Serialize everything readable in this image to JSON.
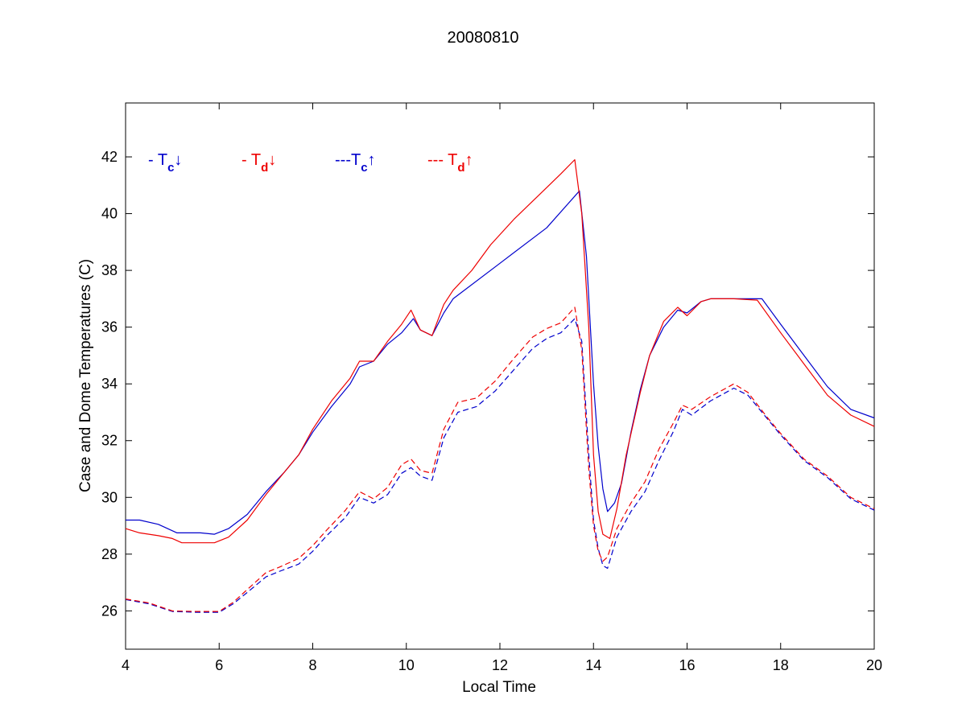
{
  "chart_data": {
    "type": "line",
    "title": "20080810",
    "xlabel": "Local Time",
    "ylabel": "Case and Dome Temperatures (C)",
    "xlim": [
      4,
      20
    ],
    "ylim": [
      24.65,
      43.9
    ],
    "xticks": [
      4,
      6,
      8,
      10,
      12,
      14,
      16,
      18,
      20
    ],
    "yticks": [
      26,
      28,
      30,
      32,
      34,
      36,
      38,
      40,
      42
    ],
    "grid": false,
    "legend_position": "top-left, inside axes, horizontal",
    "series": [
      {
        "name": "- Tc↓",
        "legend": {
          "prefix": "- T",
          "sub": "c",
          "arrow": "↓"
        },
        "color": "#0000cc",
        "dash": "solid",
        "x": [
          4.0,
          4.3,
          4.7,
          5.1,
          5.3,
          5.6,
          5.9,
          6.2,
          6.6,
          7.0,
          7.4,
          7.7,
          8.0,
          8.4,
          8.8,
          9.0,
          9.3,
          9.6,
          9.9,
          10.15,
          10.3,
          10.55,
          10.8,
          11.0,
          12.0,
          13.0,
          13.7,
          13.85,
          14.0,
          14.1,
          14.2,
          14.3,
          14.45,
          14.6,
          14.8,
          15.0,
          15.2,
          15.5,
          15.8,
          16.0,
          16.3,
          16.5,
          17.0,
          17.6,
          18.0,
          18.5,
          19.0,
          19.5,
          20.0
        ],
        "y": [
          29.2,
          29.2,
          29.05,
          28.75,
          28.75,
          28.75,
          28.7,
          28.9,
          29.4,
          30.2,
          30.9,
          31.5,
          32.3,
          33.2,
          34.0,
          34.6,
          34.8,
          35.4,
          35.8,
          36.3,
          35.9,
          35.7,
          36.5,
          37.0,
          38.25,
          39.5,
          40.8,
          38.5,
          34.0,
          31.8,
          30.3,
          29.5,
          29.8,
          30.5,
          32.3,
          33.8,
          35.0,
          36.0,
          36.6,
          36.5,
          36.9,
          37.0,
          37.0,
          37.0,
          36.1,
          35.0,
          33.9,
          33.1,
          32.8
        ]
      },
      {
        "name": "- Td↓",
        "legend": {
          "prefix": "- T",
          "sub": "d",
          "arrow": "↓"
        },
        "color": "#ee0000",
        "dash": "solid",
        "x": [
          4.0,
          4.3,
          4.7,
          5.0,
          5.2,
          5.6,
          5.9,
          6.2,
          6.6,
          7.0,
          7.4,
          7.7,
          8.0,
          8.4,
          8.8,
          9.0,
          9.3,
          9.6,
          9.9,
          10.1,
          10.3,
          10.55,
          10.8,
          11.0,
          11.4,
          11.8,
          12.3,
          12.8,
          13.3,
          13.6,
          13.75,
          13.9,
          14.0,
          14.1,
          14.2,
          14.35,
          14.5,
          14.7,
          15.0,
          15.2,
          15.5,
          15.8,
          16.0,
          16.3,
          16.5,
          17.0,
          17.5,
          18.0,
          18.5,
          19.0,
          19.5,
          20.0
        ],
        "y": [
          28.9,
          28.75,
          28.65,
          28.55,
          28.4,
          28.4,
          28.4,
          28.6,
          29.2,
          30.1,
          30.9,
          31.5,
          32.4,
          33.4,
          34.2,
          34.8,
          34.8,
          35.5,
          36.1,
          36.6,
          35.9,
          35.7,
          36.8,
          37.3,
          38.0,
          38.9,
          39.8,
          40.6,
          41.4,
          41.9,
          40.0,
          36.0,
          31.5,
          29.5,
          28.7,
          28.55,
          29.6,
          31.5,
          33.7,
          35.0,
          36.2,
          36.7,
          36.4,
          36.9,
          37.0,
          37.0,
          36.95,
          35.8,
          34.7,
          33.6,
          32.9,
          32.5
        ]
      },
      {
        "name": "---Tc↑",
        "legend": {
          "prefix": "---T",
          "sub": "c",
          "arrow": "↑"
        },
        "color": "#0000cc",
        "dash": "dashed",
        "x": [
          4.0,
          4.5,
          5.0,
          5.5,
          6.0,
          6.3,
          6.6,
          7.0,
          7.3,
          7.7,
          8.0,
          8.3,
          8.7,
          9.0,
          9.3,
          9.6,
          9.9,
          10.1,
          10.3,
          10.55,
          10.8,
          11.1,
          11.5,
          11.9,
          12.3,
          12.7,
          13.0,
          13.3,
          13.6,
          13.75,
          13.9,
          14.0,
          14.1,
          14.2,
          14.3,
          14.5,
          14.8,
          15.1,
          15.4,
          15.7,
          15.9,
          16.1,
          16.5,
          17.0,
          17.3,
          17.7,
          18.0,
          18.5,
          19.0,
          19.5,
          20.0
        ],
        "y": [
          26.4,
          26.25,
          25.98,
          25.95,
          25.95,
          26.25,
          26.65,
          27.2,
          27.4,
          27.65,
          28.1,
          28.65,
          29.3,
          30.0,
          29.8,
          30.1,
          30.85,
          31.05,
          30.75,
          30.6,
          32.1,
          33.0,
          33.2,
          33.75,
          34.5,
          35.25,
          35.6,
          35.8,
          36.3,
          35.5,
          31.5,
          29.2,
          28.2,
          27.6,
          27.5,
          28.6,
          29.5,
          30.2,
          31.3,
          32.3,
          33.1,
          32.9,
          33.4,
          33.85,
          33.6,
          32.8,
          32.2,
          31.3,
          30.7,
          29.95,
          29.55
        ]
      },
      {
        "name": "--- Td↑",
        "legend": {
          "prefix": "--- T",
          "sub": "d",
          "arrow": "↑"
        },
        "color": "#ee0000",
        "dash": "dashed",
        "x": [
          4.0,
          4.5,
          5.0,
          5.5,
          6.0,
          6.3,
          6.6,
          7.0,
          7.3,
          7.7,
          8.0,
          8.3,
          8.7,
          9.0,
          9.3,
          9.6,
          9.9,
          10.1,
          10.3,
          10.55,
          10.8,
          11.1,
          11.5,
          11.9,
          12.3,
          12.7,
          13.0,
          13.3,
          13.6,
          13.75,
          13.9,
          14.0,
          14.1,
          14.2,
          14.3,
          14.5,
          14.8,
          15.1,
          15.4,
          15.7,
          15.9,
          16.1,
          16.5,
          17.0,
          17.3,
          17.7,
          18.0,
          18.5,
          19.0,
          19.5,
          20.0
        ],
        "y": [
          26.42,
          26.28,
          26.0,
          25.98,
          25.98,
          26.3,
          26.75,
          27.35,
          27.55,
          27.85,
          28.3,
          28.85,
          29.55,
          30.2,
          29.95,
          30.35,
          31.15,
          31.35,
          30.95,
          30.85,
          32.4,
          33.35,
          33.5,
          34.1,
          34.9,
          35.65,
          35.95,
          36.15,
          36.7,
          35.2,
          31.0,
          29.0,
          28.1,
          27.75,
          27.9,
          28.9,
          29.8,
          30.55,
          31.7,
          32.6,
          33.25,
          33.1,
          33.55,
          34.0,
          33.7,
          32.85,
          32.25,
          31.35,
          30.75,
          30.0,
          29.6
        ]
      }
    ]
  }
}
